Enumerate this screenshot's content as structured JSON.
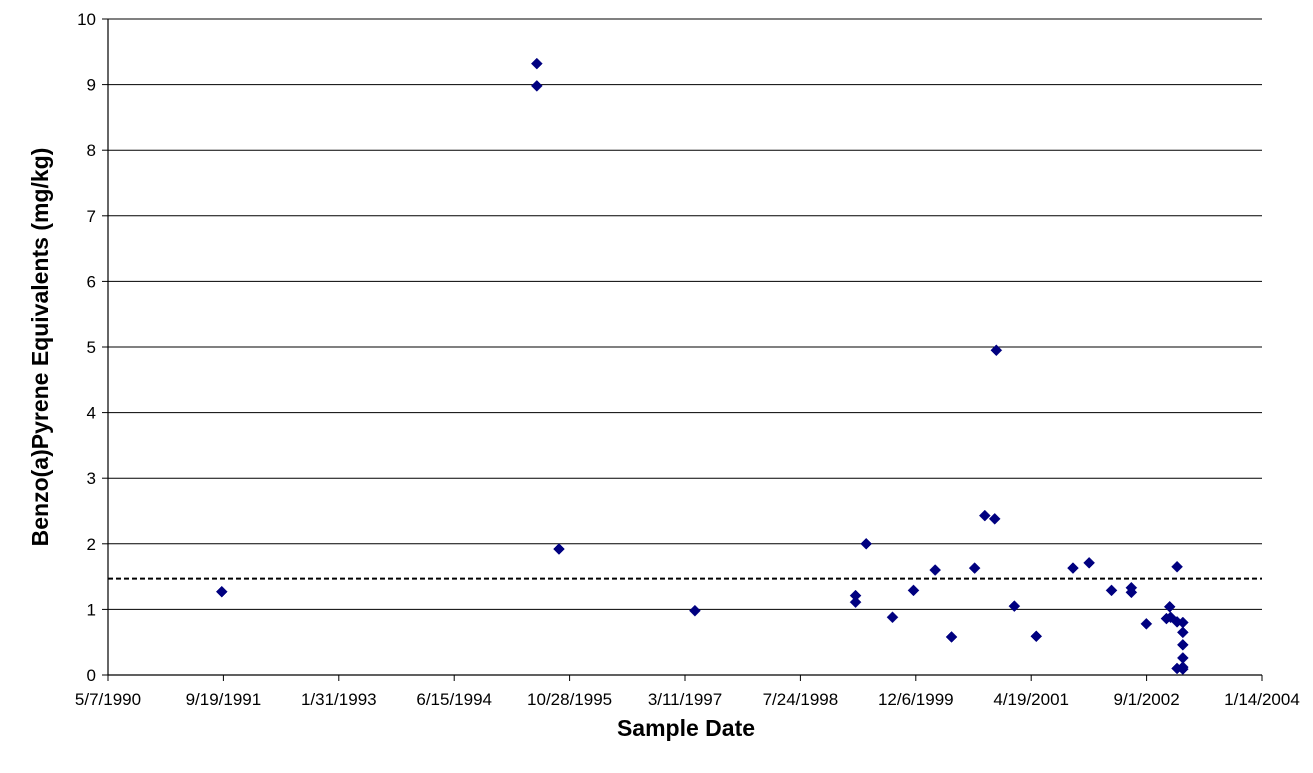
{
  "chart_data": {
    "type": "scatter",
    "title": "",
    "xlabel": "Sample Date",
    "ylabel": "Benzo(a)Pyrene Equivalents (mg/kg)",
    "xaxis_type": "date",
    "xlim": [
      "1990-05-07",
      "2004-01-14"
    ],
    "x_tick_labels": [
      "5/7/1990",
      "9/19/1991",
      "1/31/1993",
      "6/15/1994",
      "10/28/1995",
      "3/11/1997",
      "7/24/1998",
      "12/6/1999",
      "4/19/2001",
      "9/1/2002",
      "1/14/2004"
    ],
    "x_ticks": [
      "1990-05-07",
      "1991-09-19",
      "1993-01-31",
      "1994-06-15",
      "1995-10-28",
      "1997-03-11",
      "1998-07-24",
      "1999-12-06",
      "2001-04-19",
      "2002-09-01",
      "2004-01-14"
    ],
    "ylim": [
      0,
      10
    ],
    "y_tick_labels": [
      "0",
      "1",
      "2",
      "3",
      "4",
      "5",
      "6",
      "7",
      "8",
      "9",
      "10"
    ],
    "y_ticks": [
      0,
      1,
      2,
      3,
      4,
      5,
      6,
      7,
      8,
      9,
      10
    ],
    "grid": "horizontal",
    "marker": "diamond",
    "marker_color": "#000080",
    "reference_line": {
      "y": 1.47,
      "style": "dashed",
      "color": "#000000"
    },
    "points": [
      {
        "x": "1991-09-12",
        "y": 1.27
      },
      {
        "x": "1995-06-08",
        "y": 9.32
      },
      {
        "x": "1995-06-08",
        "y": 8.98
      },
      {
        "x": "1995-09-12",
        "y": 1.92
      },
      {
        "x": "1997-04-23",
        "y": 0.98
      },
      {
        "x": "1999-03-20",
        "y": 1.21
      },
      {
        "x": "1999-03-20",
        "y": 1.11
      },
      {
        "x": "1999-05-05",
        "y": 2.0
      },
      {
        "x": "1999-08-27",
        "y": 0.88
      },
      {
        "x": "1999-11-26",
        "y": 1.29
      },
      {
        "x": "2000-02-28",
        "y": 1.6
      },
      {
        "x": "2000-05-09",
        "y": 0.58
      },
      {
        "x": "2000-08-17",
        "y": 1.63
      },
      {
        "x": "2000-09-30",
        "y": 2.43
      },
      {
        "x": "2000-11-12",
        "y": 2.38
      },
      {
        "x": "2000-11-19",
        "y": 4.95
      },
      {
        "x": "2001-02-05",
        "y": 1.05
      },
      {
        "x": "2001-05-11",
        "y": 0.59
      },
      {
        "x": "2001-10-17",
        "y": 1.63
      },
      {
        "x": "2001-12-26",
        "y": 1.71
      },
      {
        "x": "2002-04-02",
        "y": 1.29
      },
      {
        "x": "2002-06-27",
        "y": 1.33
      },
      {
        "x": "2002-06-27",
        "y": 1.26
      },
      {
        "x": "2002-08-31",
        "y": 0.78
      },
      {
        "x": "2002-11-26",
        "y": 0.86
      },
      {
        "x": "2002-12-10",
        "y": 1.04
      },
      {
        "x": "2002-12-14",
        "y": 0.88
      },
      {
        "x": "2003-01-11",
        "y": 1.65
      },
      {
        "x": "2003-01-11",
        "y": 0.81
      },
      {
        "x": "2003-01-11",
        "y": 0.1
      },
      {
        "x": "2003-02-05",
        "y": 0.8
      },
      {
        "x": "2003-02-05",
        "y": 0.65
      },
      {
        "x": "2003-02-05",
        "y": 0.46
      },
      {
        "x": "2003-02-05",
        "y": 0.26
      },
      {
        "x": "2003-02-05",
        "y": 0.12
      },
      {
        "x": "2003-02-05",
        "y": 0.09
      }
    ]
  }
}
